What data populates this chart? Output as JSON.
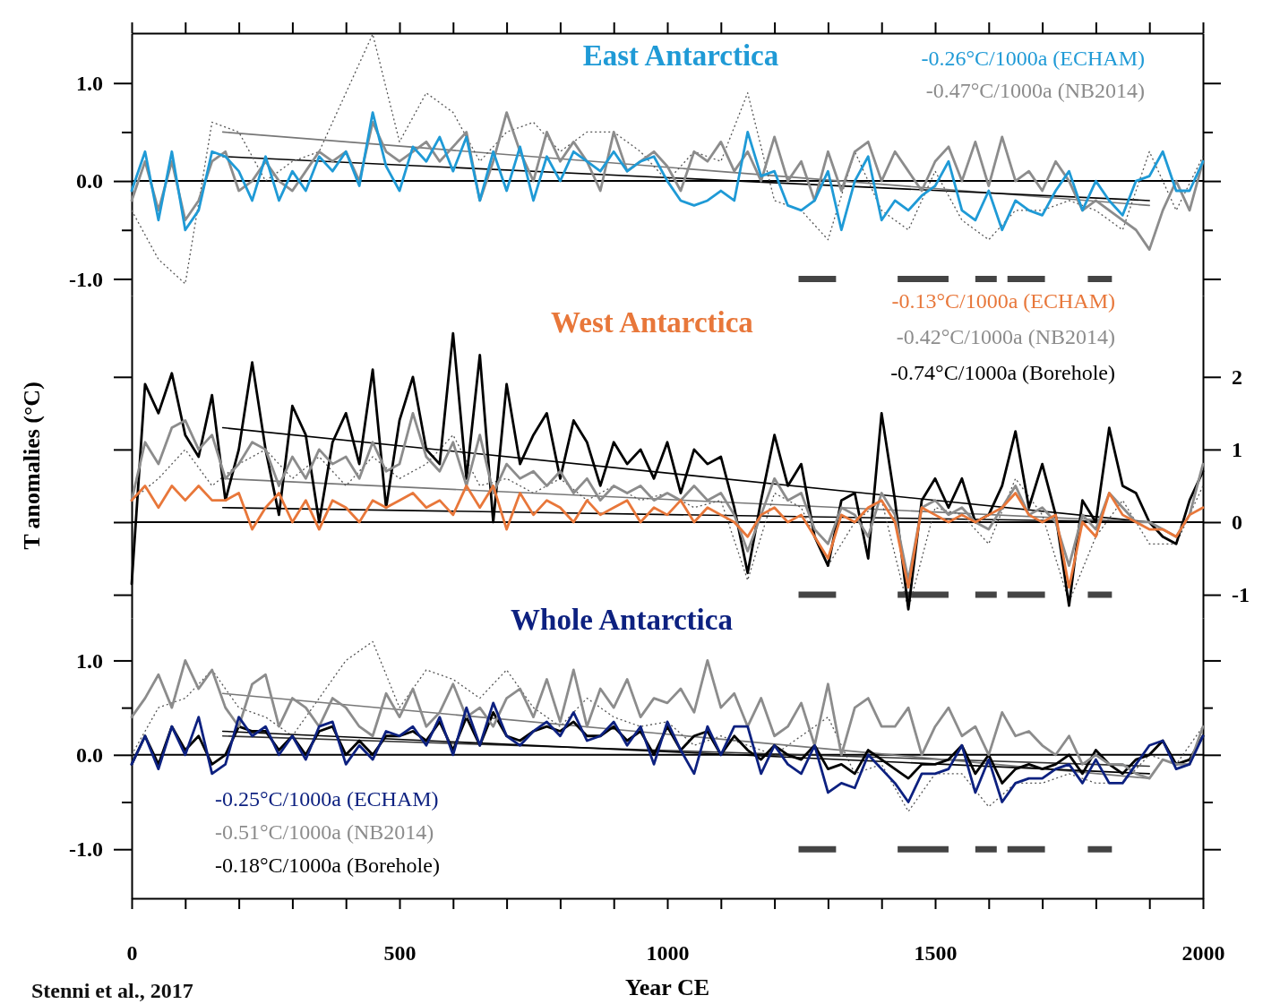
{
  "chart_data": [
    {
      "type": "line",
      "title": "East Antarctica",
      "tick_labels": "y",
      "annotations": [
        "-0.26°C/1000a (ECHAM)",
        "-0.47°C/1000a (NB2014)"
      ],
      "xlim": [
        0,
        2000
      ],
      "xticks": [
        {
          "value": 0,
          "label": null
        },
        {
          "value": 100,
          "label": null
        },
        {
          "value": 200,
          "label": null
        },
        {
          "value": 300,
          "label": null
        },
        {
          "value": 400,
          "label": null
        },
        {
          "value": 500,
          "label": null
        },
        {
          "value": 600,
          "label": null
        },
        {
          "value": 700,
          "label": null
        },
        {
          "value": 800,
          "label": null
        },
        {
          "value": 900,
          "label": null
        },
        {
          "value": 1000,
          "label": null
        },
        {
          "value": 1100,
          "label": null
        },
        {
          "value": 1200,
          "label": null
        },
        {
          "value": 1300,
          "label": null
        },
        {
          "value": 1400,
          "label": null
        },
        {
          "value": 1500,
          "label": null
        },
        {
          "value": 1600,
          "label": null
        },
        {
          "value": 1700,
          "label": null
        },
        {
          "value": 1800,
          "label": null
        },
        {
          "value": 1900,
          "label": null
        },
        {
          "value": 2000,
          "label": null
        }
      ],
      "ylim": [
        -1.17,
        1.51
      ],
      "yticks": [
        {
          "value": -1,
          "label": "-1.0"
        },
        {
          "value": -0.5,
          "label": null
        },
        {
          "value": 0,
          "label": "0.0"
        },
        {
          "value": 0.5,
          "label": null
        },
        {
          "value": 1,
          "label": "1.0"
        }
      ],
      "ref_lines": [
        {
          "axis": "y",
          "value": 0,
          "color": "#000000"
        }
      ],
      "x": [
        0,
        25,
        50,
        75,
        100,
        125,
        150,
        175,
        200,
        225,
        250,
        275,
        300,
        325,
        350,
        375,
        400,
        425,
        450,
        475,
        500,
        525,
        550,
        575,
        600,
        625,
        650,
        675,
        700,
        725,
        750,
        775,
        800,
        825,
        850,
        875,
        900,
        925,
        950,
        975,
        1000,
        1025,
        1050,
        1075,
        1100,
        1125,
        1150,
        1175,
        1200,
        1225,
        1250,
        1275,
        1300,
        1325,
        1350,
        1375,
        1400,
        1425,
        1450,
        1475,
        1500,
        1525,
        1550,
        1575,
        1600,
        1625,
        1650,
        1675,
        1700,
        1725,
        1750,
        1775,
        1800,
        1825,
        1850,
        1875,
        1900,
        1925,
        1950,
        1975,
        2000
      ],
      "series": [
        {
          "color": "#1f9ad6",
          "values": [
            -0.1,
            0.3,
            -0.4,
            0.3,
            -0.5,
            -0.3,
            0.3,
            0.25,
            0.1,
            -0.2,
            0.25,
            -0.2,
            0.1,
            -0.1,
            0.25,
            0.1,
            0.3,
            -0.05,
            0.7,
            0.15,
            -0.1,
            0.35,
            0.2,
            0.45,
            0.1,
            0.45,
            -0.2,
            0.3,
            -0.1,
            0.35,
            -0.2,
            0.25,
            0.0,
            0.3,
            0.2,
            0.1,
            0.3,
            0.1,
            0.2,
            0.25,
            0.0,
            -0.2,
            -0.25,
            -0.2,
            -0.1,
            -0.2,
            0.5,
            0.05,
            0.1,
            -0.25,
            -0.3,
            -0.2,
            0.1,
            -0.5,
            0.0,
            0.25,
            -0.4,
            -0.2,
            -0.3,
            -0.15,
            -0.05,
            0.2,
            -0.3,
            -0.4,
            -0.1,
            -0.5,
            -0.2,
            -0.3,
            -0.35,
            -0.1,
            0.1,
            -0.3,
            0.0,
            -0.2,
            -0.35,
            0.0,
            0.05,
            0.3,
            -0.1,
            -0.1,
            0.2
          ]
        },
        {
          "color": "#8c8c8c",
          "values": [
            -0.2,
            0.2,
            -0.3,
            0.2,
            -0.4,
            -0.2,
            0.2,
            0.3,
            -0.1,
            0.0,
            0.2,
            0.0,
            -0.1,
            0.1,
            0.3,
            0.2,
            0.3,
            0.0,
            0.6,
            0.3,
            0.2,
            0.3,
            0.4,
            0.2,
            0.35,
            0.5,
            -0.2,
            0.2,
            0.7,
            0.3,
            0.0,
            0.5,
            0.2,
            0.4,
            0.2,
            -0.1,
            0.5,
            0.1,
            0.2,
            0.3,
            0.15,
            -0.1,
            0.3,
            0.2,
            0.4,
            0.1,
            0.3,
            0.0,
            0.45,
            0.0,
            0.2,
            -0.2,
            0.3,
            -0.1,
            0.3,
            0.4,
            0.0,
            0.3,
            0.1,
            -0.1,
            0.2,
            0.35,
            0.0,
            0.4,
            -0.05,
            0.45,
            0.0,
            0.1,
            -0.1,
            0.2,
            0.0,
            -0.3,
            -0.2,
            -0.3,
            -0.4,
            -0.5,
            -0.7,
            -0.3,
            0.0,
            -0.3,
            0.2
          ]
        },
        {
          "color": "#555555",
          "line_style": "dotted",
          "x": [
            0,
            50,
            100,
            150,
            200,
            250,
            300,
            350,
            400,
            450,
            500,
            550,
            600,
            650,
            700,
            750,
            800,
            850,
            900,
            950,
            1000,
            1050,
            1100,
            1150,
            1200,
            1250,
            1300,
            1350,
            1400,
            1450,
            1500,
            1550,
            1600,
            1650,
            1700,
            1750,
            1800,
            1850,
            1900,
            1950,
            2000
          ],
          "values": [
            -0.3,
            -0.8,
            -1.05,
            0.6,
            0.5,
            0.0,
            0.2,
            0.3,
            0.9,
            1.5,
            0.4,
            0.9,
            0.7,
            0.2,
            0.5,
            0.6,
            0.3,
            0.5,
            0.5,
            0.3,
            0.0,
            0.3,
            0.2,
            0.9,
            -0.2,
            -0.3,
            -0.6,
            0.3,
            -0.3,
            -0.5,
            0.1,
            -0.4,
            -0.6,
            -0.3,
            -0.3,
            -0.2,
            -0.3,
            -0.5,
            0.3,
            -0.3,
            0.25
          ]
        },
        {
          "color": "#000000",
          "x": [
            170,
            1900
          ],
          "values": [
            0.25,
            -0.2
          ]
        },
        {
          "color": "#777777",
          "x": [
            170,
            1900
          ],
          "values": [
            0.5,
            -0.25
          ]
        },
        {
          "color": "#444444",
          "x": [
            1245,
            1315,
            1316,
            1430,
            1525,
            1526,
            1575,
            1615,
            1616,
            1635,
            1705,
            1706,
            1785,
            1830
          ],
          "values": [
            -1,
            -1,
            null,
            -1,
            -1,
            null,
            -1,
            -1,
            null,
            -1,
            -1,
            null,
            -1,
            -1
          ]
        }
      ]
    },
    {
      "type": "line",
      "title": "West Antarctica",
      "ylabel": "T anomalies (°C)",
      "tick_labels": "y",
      "annotations": [
        "-0.13°C/1000a (ECHAM)",
        "-0.42°C/1000a (NB2014)",
        "-0.74°C/1000a (Borehole)"
      ],
      "xlim": [
        0,
        2000
      ],
      "y2lim": [
        -1.32,
        3.12
      ],
      "y2ticks": [
        -1,
        0,
        1,
        2
      ],
      "ref_lines": [
        {
          "axis": "y2",
          "value": 0,
          "color": "#000000"
        }
      ],
      "x": [
        0,
        25,
        50,
        75,
        100,
        125,
        150,
        175,
        200,
        225,
        250,
        275,
        300,
        325,
        350,
        375,
        400,
        425,
        450,
        475,
        500,
        525,
        550,
        575,
        600,
        625,
        650,
        675,
        700,
        725,
        750,
        775,
        800,
        825,
        850,
        875,
        900,
        925,
        950,
        975,
        1000,
        1025,
        1050,
        1075,
        1100,
        1125,
        1150,
        1175,
        1200,
        1225,
        1250,
        1275,
        1300,
        1325,
        1350,
        1375,
        1400,
        1425,
        1450,
        1475,
        1500,
        1525,
        1550,
        1575,
        1600,
        1625,
        1650,
        1675,
        1700,
        1725,
        1750,
        1775,
        1800,
        1825,
        1850,
        1875,
        1900,
        1925,
        1950,
        1975,
        2000
      ],
      "series": [
        {
          "color": "#e8773a",
          "axis": "y2",
          "values": [
            0.3,
            0.5,
            0.2,
            0.5,
            0.3,
            0.5,
            0.3,
            0.3,
            0.4,
            -0.1,
            0.2,
            0.4,
            0.0,
            0.3,
            -0.1,
            0.3,
            0.2,
            0.0,
            0.3,
            0.2,
            0.3,
            0.4,
            0.2,
            0.3,
            0.1,
            0.5,
            0.2,
            0.5,
            -0.1,
            0.4,
            0.1,
            0.3,
            0.2,
            0.0,
            0.3,
            0.1,
            0.2,
            0.3,
            0.0,
            0.2,
            0.1,
            0.3,
            0.0,
            0.2,
            0.1,
            0.0,
            -0.2,
            0.1,
            0.2,
            0.0,
            0.1,
            -0.2,
            -0.5,
            0.1,
            0.0,
            0.2,
            0.3,
            0.0,
            -0.9,
            0.2,
            0.1,
            0.0,
            0.1,
            0.0,
            0.1,
            0.2,
            0.4,
            0.1,
            0.0,
            0.1,
            -0.9,
            0.0,
            -0.2,
            0.4,
            0.1,
            0.0,
            -0.1,
            -0.1,
            -0.2,
            0.1,
            0.2
          ]
        },
        {
          "color": "#8c8c8c",
          "axis": "y2",
          "values": [
            0.3,
            1.1,
            0.8,
            1.3,
            1.4,
            1.0,
            1.2,
            0.6,
            0.8,
            1.1,
            1.0,
            0.5,
            0.9,
            0.6,
            1.0,
            0.8,
            0.9,
            0.6,
            1.1,
            0.7,
            0.8,
            1.5,
            0.9,
            0.7,
            1.1,
            0.5,
            1.2,
            0.4,
            0.8,
            0.6,
            0.7,
            0.5,
            0.7,
            0.4,
            0.6,
            0.3,
            0.5,
            0.4,
            0.5,
            0.3,
            0.4,
            0.3,
            0.5,
            0.3,
            0.4,
            0.1,
            -0.4,
            0.1,
            0.6,
            0.3,
            0.4,
            -0.1,
            -0.3,
            0.2,
            0.1,
            -0.2,
            0.4,
            0.1,
            -0.8,
            0.2,
            0.3,
            0.1,
            0.2,
            0.0,
            -0.1,
            0.2,
            0.5,
            0.1,
            0.2,
            0.0,
            -0.6,
            0.1,
            -0.1,
            0.4,
            0.2,
            0.0,
            0.0,
            -0.1,
            -0.2,
            0.1,
            0.8
          ]
        },
        {
          "color": "#000000",
          "axis": "y2",
          "values": [
            -0.85,
            1.9,
            1.5,
            2.05,
            1.2,
            0.9,
            1.75,
            0.3,
            1.0,
            2.2,
            1.0,
            0.1,
            1.6,
            1.2,
            0.0,
            1.1,
            1.5,
            0.8,
            2.1,
            0.2,
            1.4,
            2.0,
            1.0,
            0.8,
            2.6,
            0.6,
            2.3,
            0.0,
            1.9,
            0.8,
            1.2,
            1.5,
            0.6,
            1.4,
            1.1,
            0.5,
            1.1,
            0.8,
            1.0,
            0.6,
            1.1,
            0.4,
            1.0,
            0.8,
            0.9,
            0.2,
            -0.7,
            0.3,
            1.2,
            0.5,
            0.8,
            -0.2,
            -0.6,
            0.3,
            0.4,
            -0.5,
            1.5,
            0.3,
            -1.2,
            0.3,
            0.6,
            0.2,
            0.6,
            0.0,
            0.1,
            0.5,
            1.25,
            0.2,
            0.8,
            0.1,
            -1.15,
            0.3,
            0.0,
            1.3,
            0.5,
            0.4,
            0.0,
            -0.2,
            -0.3,
            0.3,
            0.7
          ]
        },
        {
          "color": "#555555",
          "axis": "y2",
          "line_style": "dotted",
          "x": [
            0,
            50,
            100,
            150,
            200,
            250,
            300,
            350,
            400,
            450,
            500,
            550,
            600,
            650,
            700,
            750,
            800,
            850,
            900,
            950,
            1000,
            1050,
            1100,
            1150,
            1200,
            1250,
            1300,
            1350,
            1400,
            1450,
            1500,
            1550,
            1600,
            1650,
            1700,
            1750,
            1800,
            1850,
            1900,
            1950,
            2000
          ],
          "values": [
            0.3,
            0.6,
            1.0,
            0.5,
            0.8,
            1.0,
            0.6,
            0.9,
            0.5,
            0.9,
            0.6,
            0.8,
            1.2,
            0.5,
            0.6,
            0.4,
            0.6,
            0.3,
            0.5,
            0.3,
            0.4,
            0.2,
            0.3,
            -0.8,
            0.4,
            0.2,
            -0.6,
            0.0,
            0.3,
            -1.2,
            0.2,
            0.1,
            -0.3,
            0.6,
            0.1,
            -1.1,
            -0.2,
            0.3,
            -0.3,
            -0.3,
            0.5
          ]
        },
        {
          "color": "#000000",
          "axis": "y2",
          "x": [
            170,
            1900
          ],
          "values": [
            0.2,
            0.0
          ]
        },
        {
          "color": "#777777",
          "axis": "y2",
          "x": [
            170,
            1900
          ],
          "values": [
            0.6,
            0.0
          ]
        },
        {
          "color": "#000000",
          "axis": "y2",
          "x": [
            170,
            1900
          ],
          "values": [
            1.3,
            0.0
          ]
        },
        {
          "color": "#444444",
          "axis": "y2",
          "x": [
            1245,
            1315,
            1316,
            1430,
            1525,
            1526,
            1575,
            1615,
            1616,
            1635,
            1705,
            1706,
            1785,
            1830
          ],
          "values": [
            -1,
            -1,
            null,
            -1,
            -1,
            null,
            -1,
            -1,
            null,
            -1,
            -1,
            null,
            -1,
            -1
          ]
        }
      ]
    },
    {
      "type": "line",
      "title": "Whole Antarctica",
      "xlabel": "Year CE",
      "annotations": [
        "-0.25°C/1000a (ECHAM)",
        "-0.51°C/1000a (NB2014)",
        "-0.18°C/1000a (Borehole)",
        "Stenni et al., 2017"
      ],
      "xlim": [
        0,
        2000
      ],
      "xticks": [
        0,
        {
          "value": 100,
          "label": null
        },
        {
          "value": 200,
          "label": null
        },
        {
          "value": 300,
          "label": null
        },
        {
          "value": 400,
          "label": null
        },
        500,
        {
          "value": 600,
          "label": null
        },
        {
          "value": 700,
          "label": null
        },
        {
          "value": 800,
          "label": null
        },
        {
          "value": 900,
          "label": null
        },
        1000,
        {
          "value": 1100,
          "label": null
        },
        {
          "value": 1200,
          "label": null
        },
        {
          "value": 1300,
          "label": null
        },
        {
          "value": 1400,
          "label": null
        },
        1500,
        {
          "value": 1600,
          "label": null
        },
        {
          "value": 1700,
          "label": null
        },
        {
          "value": 1800,
          "label": null
        },
        {
          "value": 1900,
          "label": null
        },
        2000
      ],
      "ylim": [
        -1.52,
        1.45
      ],
      "yticks": [
        {
          "value": -1,
          "label": "-1.0"
        },
        {
          "value": -0.5,
          "label": null
        },
        {
          "value": 0,
          "label": "0.0"
        },
        {
          "value": 0.5,
          "label": null
        },
        {
          "value": 1,
          "label": "1.0"
        }
      ],
      "ref_lines": [
        {
          "axis": "y",
          "value": 0,
          "color": "#000000"
        }
      ],
      "x": [
        0,
        25,
        50,
        75,
        100,
        125,
        150,
        175,
        200,
        225,
        250,
        275,
        300,
        325,
        350,
        375,
        400,
        425,
        450,
        475,
        500,
        525,
        550,
        575,
        600,
        625,
        650,
        675,
        700,
        725,
        750,
        775,
        800,
        825,
        850,
        875,
        900,
        925,
        950,
        975,
        1000,
        1025,
        1050,
        1075,
        1100,
        1125,
        1150,
        1175,
        1200,
        1225,
        1250,
        1275,
        1300,
        1325,
        1350,
        1375,
        1400,
        1425,
        1450,
        1475,
        1500,
        1525,
        1550,
        1575,
        1600,
        1625,
        1650,
        1675,
        1700,
        1725,
        1750,
        1775,
        1800,
        1825,
        1850,
        1875,
        1900,
        1925,
        1950,
        1975,
        2000
      ],
      "series": [
        {
          "color": "#0d2180",
          "values": [
            -0.1,
            0.2,
            -0.15,
            0.3,
            0.0,
            0.4,
            -0.2,
            -0.1,
            0.4,
            0.2,
            0.3,
            0.0,
            0.2,
            -0.05,
            0.3,
            0.35,
            -0.1,
            0.1,
            -0.05,
            0.25,
            0.2,
            0.3,
            0.1,
            0.4,
            0.0,
            0.5,
            0.1,
            0.55,
            0.2,
            0.1,
            0.25,
            0.35,
            0.2,
            0.45,
            0.15,
            0.2,
            0.35,
            0.1,
            0.3,
            -0.1,
            0.35,
            0.05,
            -0.2,
            0.3,
            0.0,
            0.3,
            0.3,
            -0.2,
            0.1,
            -0.1,
            -0.2,
            0.1,
            -0.4,
            -0.3,
            -0.35,
            0.0,
            -0.15,
            -0.3,
            -0.5,
            -0.2,
            -0.2,
            -0.15,
            0.1,
            -0.4,
            -0.05,
            -0.5,
            -0.3,
            -0.25,
            -0.25,
            -0.15,
            -0.1,
            -0.3,
            -0.05,
            -0.3,
            -0.3,
            -0.1,
            0.1,
            0.15,
            -0.15,
            -0.1,
            0.2
          ]
        },
        {
          "color": "#8c8c8c",
          "values": [
            0.4,
            0.6,
            0.85,
            0.5,
            1.0,
            0.7,
            0.9,
            0.5,
            0.3,
            0.75,
            0.85,
            0.3,
            0.6,
            0.5,
            0.3,
            0.6,
            0.5,
            0.3,
            0.2,
            0.65,
            0.4,
            0.7,
            0.3,
            0.45,
            0.75,
            0.4,
            0.5,
            0.3,
            0.6,
            0.7,
            0.4,
            0.8,
            0.35,
            0.9,
            0.3,
            0.7,
            0.5,
            0.8,
            0.4,
            0.6,
            0.55,
            0.7,
            0.45,
            1.0,
            0.5,
            0.65,
            0.3,
            0.6,
            0.2,
            0.3,
            0.55,
            0.1,
            0.75,
            0.0,
            0.5,
            0.6,
            0.3,
            0.3,
            0.5,
            0.0,
            0.3,
            0.5,
            0.2,
            0.3,
            0.0,
            0.45,
            0.2,
            0.25,
            0.1,
            0.0,
            0.2,
            -0.1,
            0.0,
            -0.1,
            -0.1,
            -0.2,
            -0.25,
            -0.05,
            -0.1,
            -0.1,
            0.3
          ]
        },
        {
          "color": "#000000",
          "values": [
            -0.1,
            0.2,
            -0.1,
            0.3,
            0.05,
            0.2,
            -0.1,
            0.0,
            0.3,
            0.25,
            0.25,
            0.05,
            0.2,
            0.0,
            0.25,
            0.3,
            0.0,
            0.15,
            0.0,
            0.2,
            0.2,
            0.25,
            0.15,
            0.35,
            0.05,
            0.4,
            0.1,
            0.45,
            0.2,
            0.15,
            0.25,
            0.3,
            0.25,
            0.35,
            0.2,
            0.2,
            0.3,
            0.15,
            0.25,
            0.0,
            0.3,
            0.05,
            0.2,
            0.25,
            0.0,
            0.2,
            0.05,
            -0.05,
            0.1,
            0.0,
            -0.05,
            0.1,
            -0.15,
            -0.1,
            -0.2,
            0.05,
            -0.05,
            -0.15,
            -0.25,
            -0.1,
            -0.1,
            -0.05,
            0.1,
            -0.2,
            0.0,
            -0.3,
            -0.15,
            -0.1,
            -0.15,
            -0.1,
            0.0,
            -0.2,
            0.05,
            -0.1,
            -0.2,
            -0.05,
            0.0,
            0.15,
            -0.1,
            -0.05,
            0.2
          ]
        },
        {
          "color": "#000000",
          "x": [
            170,
            1900
          ],
          "values": [
            0.25,
            -0.2
          ]
        },
        {
          "color": "#777777",
          "x": [
            170,
            1900
          ],
          "values": [
            0.65,
            -0.25
          ]
        },
        {
          "color": "#333333",
          "x": [
            170,
            1900
          ],
          "values": [
            0.2,
            -0.12
          ]
        },
        {
          "color": "#555555",
          "line_style": "dotted",
          "x": [
            0,
            50,
            100,
            150,
            200,
            250,
            300,
            350,
            400,
            450,
            500,
            550,
            600,
            650,
            700,
            750,
            800,
            850,
            900,
            950,
            1000,
            1050,
            1100,
            1150,
            1200,
            1250,
            1300,
            1350,
            1400,
            1450,
            1500,
            1550,
            1600,
            1650,
            1700,
            1750,
            1800,
            1850,
            1900,
            1950,
            2000
          ],
          "values": [
            0.0,
            0.5,
            0.6,
            0.9,
            0.5,
            0.4,
            0.2,
            0.6,
            1.0,
            1.2,
            0.5,
            0.9,
            0.8,
            0.6,
            0.9,
            0.5,
            0.3,
            0.6,
            0.4,
            0.3,
            0.35,
            0.1,
            0.2,
            0.1,
            0.0,
            0.2,
            0.4,
            -0.2,
            -0.1,
            -0.6,
            -0.2,
            -0.2,
            -0.55,
            -0.3,
            -0.3,
            -0.2,
            -0.3,
            -0.3,
            0.0,
            -0.1,
            0.3
          ]
        },
        {
          "color": "#444444",
          "x": [
            1245,
            1315,
            1316,
            1430,
            1525,
            1526,
            1575,
            1615,
            1616,
            1635,
            1705,
            1706,
            1785,
            1830
          ],
          "values": [
            -1,
            -1,
            null,
            -1,
            -1,
            null,
            -1,
            -1,
            null,
            -1,
            -1,
            null,
            -1,
            -1
          ]
        }
      ]
    }
  ]
}
